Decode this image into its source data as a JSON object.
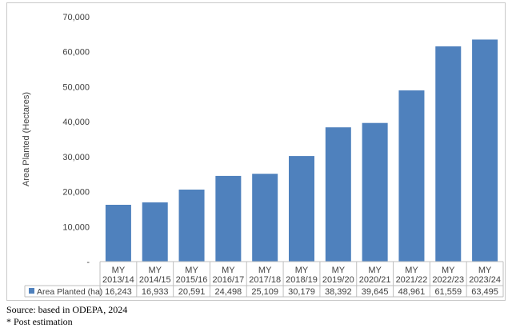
{
  "chart_data": {
    "type": "bar",
    "ylabel": "Area Planted (Hectares)",
    "ylim": [
      0,
      70000
    ],
    "yticks": [
      {
        "value": 0,
        "label": "-"
      },
      {
        "value": 10000,
        "label": "10,000"
      },
      {
        "value": 20000,
        "label": "20,000"
      },
      {
        "value": 30000,
        "label": "30,000"
      },
      {
        "value": 40000,
        "label": "40,000"
      },
      {
        "value": 50000,
        "label": "50,000"
      },
      {
        "value": 60000,
        "label": "60,000"
      },
      {
        "value": 70000,
        "label": "70,000"
      }
    ],
    "categories": [
      {
        "line1": "MY",
        "line2": "2013/14"
      },
      {
        "line1": "MY",
        "line2": "2014/15"
      },
      {
        "line1": "MY",
        "line2": "2015/16"
      },
      {
        "line1": "MY",
        "line2": "2016/17"
      },
      {
        "line1": "MY",
        "line2": "2017/18"
      },
      {
        "line1": "MY",
        "line2": "2018/19"
      },
      {
        "line1": "MY",
        "line2": "2019/20"
      },
      {
        "line1": "MY",
        "line2": "2020/21"
      },
      {
        "line1": "MY",
        "line2": "2021/22"
      },
      {
        "line1": "MY",
        "line2": "2022/23"
      },
      {
        "line1": "MY",
        "line2": "2023/24"
      }
    ],
    "series": [
      {
        "name": "Area Planted (ha)",
        "color": "#4f81bd",
        "values": [
          16243,
          16933,
          20591,
          24498,
          25109,
          30179,
          38392,
          39645,
          48961,
          61559,
          63495
        ],
        "value_labels": [
          "16,243",
          "16,933",
          "20,591",
          "24,498",
          "25,109",
          "30,179",
          "38,392",
          "39,645",
          "48,961",
          "61,559",
          "63,495"
        ]
      }
    ],
    "grid": false,
    "legend": "data-table-row"
  },
  "footer": {
    "source": "Source: based in ODEPA, 2024",
    "note": "* Post estimation"
  }
}
